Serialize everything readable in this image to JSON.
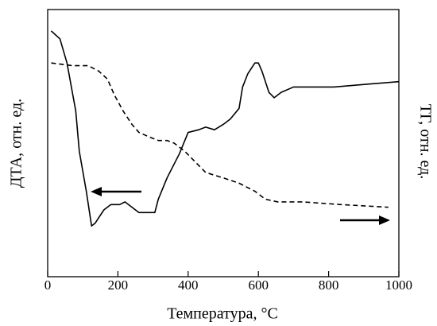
{
  "chart_data": {
    "type": "line",
    "xlabel": "Температура, °C",
    "ylabel": "ДТА, отн. ед.",
    "y2label": "ТГ, отн. ед.",
    "xlim": [
      0,
      1000
    ],
    "xticks": [
      0,
      200,
      400,
      600,
      800,
      1000
    ],
    "ylim": [
      0,
      1
    ],
    "y2lim": [
      0,
      1
    ],
    "series": [
      {
        "color": "#000000",
        "dash": false,
        "axis": "y",
        "x": [
          10,
          35,
          55,
          80,
          90,
          110,
          125,
          135,
          160,
          180,
          205,
          220,
          240,
          260,
          285,
          305,
          315,
          340,
          375,
          400,
          430,
          450,
          475,
          500,
          520,
          545,
          555,
          570,
          590,
          600,
          610,
          630,
          645,
          665,
          700,
          725,
          815,
          905,
          1000
        ],
        "values": [
          0.92,
          0.89,
          0.8,
          0.62,
          0.47,
          0.32,
          0.19,
          0.2,
          0.25,
          0.27,
          0.27,
          0.28,
          0.26,
          0.24,
          0.24,
          0.24,
          0.29,
          0.37,
          0.46,
          0.54,
          0.55,
          0.56,
          0.55,
          0.57,
          0.59,
          0.63,
          0.71,
          0.76,
          0.8,
          0.8,
          0.77,
          0.69,
          0.67,
          0.69,
          0.71,
          0.71,
          0.71,
          0.72,
          0.73
        ]
      },
      {
        "color": "#000000",
        "dash": true,
        "axis": "y2",
        "x": [
          10,
          70,
          115,
          145,
          170,
          190,
          215,
          240,
          260,
          295,
          315,
          340,
          360,
          390,
          420,
          450,
          500,
          545,
          590,
          620,
          655,
          725,
          835,
          970
        ],
        "values": [
          0.8,
          0.79,
          0.79,
          0.77,
          0.74,
          0.68,
          0.62,
          0.57,
          0.54,
          0.52,
          0.51,
          0.51,
          0.5,
          0.47,
          0.43,
          0.39,
          0.37,
          0.35,
          0.32,
          0.29,
          0.28,
          0.28,
          0.27,
          0.26
        ]
      }
    ]
  }
}
